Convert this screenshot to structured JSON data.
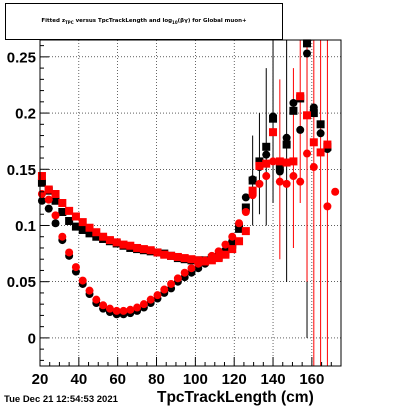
{
  "chart_data": {
    "type": "scatter",
    "title_parts": {
      "prefix": "Fitted  z",
      "sub1": "TPC",
      "mid": "  versus TpcTrackLength and log",
      "sub2": "10",
      "suffix": "(βγ) for Global muon+"
    },
    "xlabel": "TpcTrackLength (cm)",
    "ylabel": "",
    "xlim": [
      20,
      175
    ],
    "ylim": [
      -0.025,
      0.265
    ],
    "x_ticks": [
      20,
      40,
      60,
      80,
      100,
      120,
      140,
      160
    ],
    "y_ticks": [
      0,
      0.05,
      0.1,
      0.15,
      0.2,
      0.25
    ],
    "x_tick_labels": [
      "20",
      "40",
      "60",
      "80",
      "100",
      "120",
      "140",
      "160"
    ],
    "y_tick_labels": [
      "0",
      "0.05",
      "0.1",
      "0.15",
      "0.2",
      "0.25"
    ],
    "grid": true,
    "series": [
      {
        "color": "#000000",
        "marker": "square",
        "points": [
          {
            "x": 21,
            "y": 0.138
          },
          {
            "x": 24.5,
            "y": 0.131
          },
          {
            "x": 28,
            "y": 0.122
          },
          {
            "x": 31.5,
            "y": 0.112
          },
          {
            "x": 35,
            "y": 0.104
          },
          {
            "x": 38.5,
            "y": 0.099
          },
          {
            "x": 42,
            "y": 0.096
          },
          {
            "x": 45.5,
            "y": 0.093
          },
          {
            "x": 49,
            "y": 0.09
          },
          {
            "x": 52.5,
            "y": 0.088
          },
          {
            "x": 56,
            "y": 0.086
          },
          {
            "x": 59.5,
            "y": 0.084
          },
          {
            "x": 63,
            "y": 0.082
          },
          {
            "x": 66.5,
            "y": 0.08
          },
          {
            "x": 70,
            "y": 0.079
          },
          {
            "x": 73.5,
            "y": 0.078
          },
          {
            "x": 77,
            "y": 0.077
          },
          {
            "x": 80.5,
            "y": 0.076
          },
          {
            "x": 84,
            "y": 0.075
          },
          {
            "x": 87.5,
            "y": 0.073
          },
          {
            "x": 91,
            "y": 0.071
          },
          {
            "x": 94.5,
            "y": 0.07
          },
          {
            "x": 98,
            "y": 0.069
          },
          {
            "x": 101.5,
            "y": 0.069
          },
          {
            "x": 105,
            "y": 0.069
          },
          {
            "x": 108.5,
            "y": 0.071
          },
          {
            "x": 112,
            "y": 0.072
          },
          {
            "x": 115.5,
            "y": 0.076
          },
          {
            "x": 119,
            "y": 0.083
          },
          {
            "x": 122.5,
            "y": 0.097
          },
          {
            "x": 126,
            "y": 0.116
          },
          {
            "x": 129.5,
            "y": 0.14
          },
          {
            "x": 133,
            "y": 0.157
          },
          {
            "x": 136.5,
            "y": 0.17
          },
          {
            "x": 140,
            "y": 0.195
          },
          {
            "x": 143.5,
            "y": 0.152
          },
          {
            "x": 147,
            "y": 0.172
          },
          {
            "x": 150.5,
            "y": 0.202
          },
          {
            "x": 154,
            "y": 0.213
          },
          {
            "x": 157.5,
            "y": 0.262
          },
          {
            "x": 161,
            "y": 0.2
          },
          {
            "x": 164.5,
            "y": 0.19
          },
          {
            "x": 168,
            "y": 0.17
          }
        ],
        "errors": [
          {
            "x": 157.5,
            "lo": 0.0,
            "hi": 0.265
          },
          {
            "x": 147,
            "lo": 0.05,
            "hi": 0.265
          },
          {
            "x": 140,
            "lo": 0.12,
            "hi": 0.265
          },
          {
            "x": 136.5,
            "lo": 0.1,
            "hi": 0.24
          },
          {
            "x": 133,
            "lo": 0.11,
            "hi": 0.2
          },
          {
            "x": 129.5,
            "lo": 0.1,
            "hi": 0.18
          }
        ]
      },
      {
        "color": "#000000",
        "marker": "circle",
        "points": [
          {
            "x": 21,
            "y": 0.122
          },
          {
            "x": 24.5,
            "y": 0.115
          },
          {
            "x": 28,
            "y": 0.102
          },
          {
            "x": 31.5,
            "y": 0.087
          },
          {
            "x": 35,
            "y": 0.073
          },
          {
            "x": 38.5,
            "y": 0.059
          },
          {
            "x": 42,
            "y": 0.048
          },
          {
            "x": 45.5,
            "y": 0.039
          },
          {
            "x": 49,
            "y": 0.031
          },
          {
            "x": 52.5,
            "y": 0.026
          },
          {
            "x": 56,
            "y": 0.023
          },
          {
            "x": 59.5,
            "y": 0.021
          },
          {
            "x": 63,
            "y": 0.021
          },
          {
            "x": 66.5,
            "y": 0.022
          },
          {
            "x": 70,
            "y": 0.024
          },
          {
            "x": 73.5,
            "y": 0.027
          },
          {
            "x": 77,
            "y": 0.031
          },
          {
            "x": 80.5,
            "y": 0.035
          },
          {
            "x": 84,
            "y": 0.04
          },
          {
            "x": 87.5,
            "y": 0.044
          },
          {
            "x": 91,
            "y": 0.05
          },
          {
            "x": 94.5,
            "y": 0.054
          },
          {
            "x": 98,
            "y": 0.058
          },
          {
            "x": 101.5,
            "y": 0.062
          },
          {
            "x": 105,
            "y": 0.066
          },
          {
            "x": 108.5,
            "y": 0.07
          },
          {
            "x": 112,
            "y": 0.073
          },
          {
            "x": 115.5,
            "y": 0.078
          },
          {
            "x": 119,
            "y": 0.086
          },
          {
            "x": 122.5,
            "y": 0.101
          },
          {
            "x": 126,
            "y": 0.125
          },
          {
            "x": 129.5,
            "y": 0.141
          },
          {
            "x": 133,
            "y": 0.152
          },
          {
            "x": 136.5,
            "y": 0.163
          },
          {
            "x": 140,
            "y": 0.197
          },
          {
            "x": 143.5,
            "y": 0.148
          },
          {
            "x": 147,
            "y": 0.178
          },
          {
            "x": 150.5,
            "y": 0.209
          },
          {
            "x": 154,
            "y": 0.185
          },
          {
            "x": 157.5,
            "y": 0.253
          },
          {
            "x": 161,
            "y": 0.205
          },
          {
            "x": 164.5,
            "y": 0.182
          },
          {
            "x": 168,
            "y": 0.168
          }
        ]
      },
      {
        "color": "#ff0000",
        "marker": "square",
        "points": [
          {
            "x": 21,
            "y": 0.144
          },
          {
            "x": 24.5,
            "y": 0.132
          },
          {
            "x": 28,
            "y": 0.128
          },
          {
            "x": 31.5,
            "y": 0.12
          },
          {
            "x": 35,
            "y": 0.113
          },
          {
            "x": 38.5,
            "y": 0.108
          },
          {
            "x": 42,
            "y": 0.103
          },
          {
            "x": 45.5,
            "y": 0.098
          },
          {
            "x": 49,
            "y": 0.094
          },
          {
            "x": 52.5,
            "y": 0.09
          },
          {
            "x": 56,
            "y": 0.087
          },
          {
            "x": 59.5,
            "y": 0.085
          },
          {
            "x": 63,
            "y": 0.083
          },
          {
            "x": 66.5,
            "y": 0.082
          },
          {
            "x": 70,
            "y": 0.08
          },
          {
            "x": 73.5,
            "y": 0.079
          },
          {
            "x": 77,
            "y": 0.078
          },
          {
            "x": 80.5,
            "y": 0.076
          },
          {
            "x": 84,
            "y": 0.074
          },
          {
            "x": 87.5,
            "y": 0.073
          },
          {
            "x": 91,
            "y": 0.072
          },
          {
            "x": 94.5,
            "y": 0.071
          },
          {
            "x": 98,
            "y": 0.07
          },
          {
            "x": 101.5,
            "y": 0.069
          },
          {
            "x": 105,
            "y": 0.068
          },
          {
            "x": 108.5,
            "y": 0.069
          },
          {
            "x": 112,
            "y": 0.071
          },
          {
            "x": 115.5,
            "y": 0.074
          },
          {
            "x": 119,
            "y": 0.079
          },
          {
            "x": 122.5,
            "y": 0.086
          },
          {
            "x": 126,
            "y": 0.095
          },
          {
            "x": 129.5,
            "y": 0.131
          },
          {
            "x": 133,
            "y": 0.153
          },
          {
            "x": 136.5,
            "y": 0.155
          },
          {
            "x": 140,
            "y": 0.183
          },
          {
            "x": 143.5,
            "y": 0.157
          },
          {
            "x": 147,
            "y": 0.156
          },
          {
            "x": 150.5,
            "y": 0.157
          },
          {
            "x": 154,
            "y": 0.215
          },
          {
            "x": 157.5,
            "y": 0.198
          },
          {
            "x": 161,
            "y": 0.174
          },
          {
            "x": 164.5,
            "y": 0.165
          },
          {
            "x": 168,
            "y": 0.172
          }
        ],
        "errors": [
          {
            "x": 161,
            "lo": -0.025,
            "hi": 0.265
          },
          {
            "x": 164.5,
            "lo": -0.025,
            "hi": 0.265
          },
          {
            "x": 168,
            "lo": -0.025,
            "hi": 0.265
          },
          {
            "x": 157.5,
            "lo": 0.05,
            "hi": 0.265
          },
          {
            "x": 154,
            "lo": 0.12,
            "hi": 0.265
          },
          {
            "x": 150.5,
            "lo": 0.08,
            "hi": 0.24
          },
          {
            "x": 143.5,
            "lo": 0.07,
            "hi": 0.23
          }
        ]
      },
      {
        "color": "#ff0000",
        "marker": "circle",
        "points": [
          {
            "x": 21,
            "y": 0.128
          },
          {
            "x": 24.5,
            "y": 0.123
          },
          {
            "x": 28,
            "y": 0.109
          },
          {
            "x": 31.5,
            "y": 0.09
          },
          {
            "x": 35,
            "y": 0.076
          },
          {
            "x": 38.5,
            "y": 0.063
          },
          {
            "x": 42,
            "y": 0.051
          },
          {
            "x": 45.5,
            "y": 0.042
          },
          {
            "x": 49,
            "y": 0.034
          },
          {
            "x": 52.5,
            "y": 0.029
          },
          {
            "x": 56,
            "y": 0.026
          },
          {
            "x": 59.5,
            "y": 0.024
          },
          {
            "x": 63,
            "y": 0.024
          },
          {
            "x": 66.5,
            "y": 0.025
          },
          {
            "x": 70,
            "y": 0.027
          },
          {
            "x": 73.5,
            "y": 0.03
          },
          {
            "x": 77,
            "y": 0.034
          },
          {
            "x": 80.5,
            "y": 0.038
          },
          {
            "x": 84,
            "y": 0.043
          },
          {
            "x": 87.5,
            "y": 0.048
          },
          {
            "x": 91,
            "y": 0.053
          },
          {
            "x": 94.5,
            "y": 0.058
          },
          {
            "x": 98,
            "y": 0.062
          },
          {
            "x": 101.5,
            "y": 0.066
          },
          {
            "x": 105,
            "y": 0.069
          },
          {
            "x": 108.5,
            "y": 0.073
          },
          {
            "x": 112,
            "y": 0.077
          },
          {
            "x": 115.5,
            "y": 0.083
          },
          {
            "x": 119,
            "y": 0.09
          },
          {
            "x": 122.5,
            "y": 0.102
          },
          {
            "x": 126,
            "y": 0.112
          },
          {
            "x": 129.5,
            "y": 0.127
          },
          {
            "x": 133,
            "y": 0.137
          },
          {
            "x": 136.5,
            "y": 0.144
          },
          {
            "x": 140,
            "y": 0.157
          },
          {
            "x": 143.5,
            "y": 0.139
          },
          {
            "x": 147,
            "y": 0.137
          },
          {
            "x": 150.5,
            "y": 0.144
          },
          {
            "x": 154,
            "y": 0.139
          },
          {
            "x": 157.5,
            "y": 0.164
          },
          {
            "x": 161,
            "y": 0.152
          },
          {
            "x": 168,
            "y": 0.117
          },
          {
            "x": 172,
            "y": 0.13
          }
        ]
      }
    ]
  },
  "footer": {
    "timestamp": "Tue Dec 21 12:54:53 2021"
  }
}
